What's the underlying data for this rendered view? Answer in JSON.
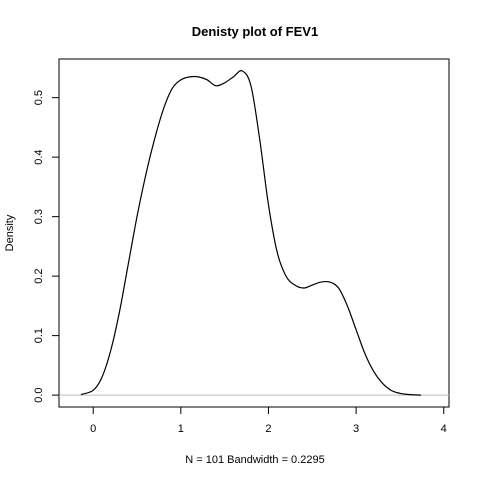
{
  "chart_data": {
    "type": "line",
    "title": "Denisty plot of  FEV1",
    "xlabel": "N = 101   Bandwidth = 0.2295",
    "ylabel": "Density",
    "xlim": [
      -0.39,
      4.06
    ],
    "ylim": [
      -0.02,
      0.565
    ],
    "xticks": [
      0,
      1,
      2,
      3,
      4
    ],
    "xtick_labels": [
      "0",
      "1",
      "2",
      "3",
      "4"
    ],
    "yticks": [
      0.0,
      0.1,
      0.2,
      0.3,
      0.4,
      0.5
    ],
    "ytick_labels": [
      "0.0",
      "0.1",
      "0.2",
      "0.3",
      "0.4",
      "0.5"
    ],
    "baseline_color": "#bebebe",
    "line_color": "#000000",
    "grid": false,
    "series": [
      {
        "x": [
          -0.14,
          0.0,
          0.1,
          0.2,
          0.3,
          0.4,
          0.5,
          0.6,
          0.7,
          0.8,
          0.9,
          1.0,
          1.1,
          1.2,
          1.3,
          1.4,
          1.5,
          1.6,
          1.7,
          1.8,
          1.9,
          2.0,
          2.1,
          2.2,
          2.3,
          2.4,
          2.5,
          2.6,
          2.7,
          2.8,
          2.9,
          3.0,
          3.1,
          3.2,
          3.3,
          3.4,
          3.5,
          3.6,
          3.74
        ],
        "y": [
          0.001,
          0.008,
          0.03,
          0.075,
          0.14,
          0.22,
          0.3,
          0.37,
          0.43,
          0.48,
          0.515,
          0.53,
          0.535,
          0.535,
          0.53,
          0.52,
          0.525,
          0.535,
          0.545,
          0.52,
          0.43,
          0.32,
          0.24,
          0.2,
          0.185,
          0.18,
          0.185,
          0.19,
          0.19,
          0.18,
          0.15,
          0.11,
          0.07,
          0.04,
          0.02,
          0.008,
          0.003,
          0.001,
          0.0
        ]
      }
    ]
  }
}
